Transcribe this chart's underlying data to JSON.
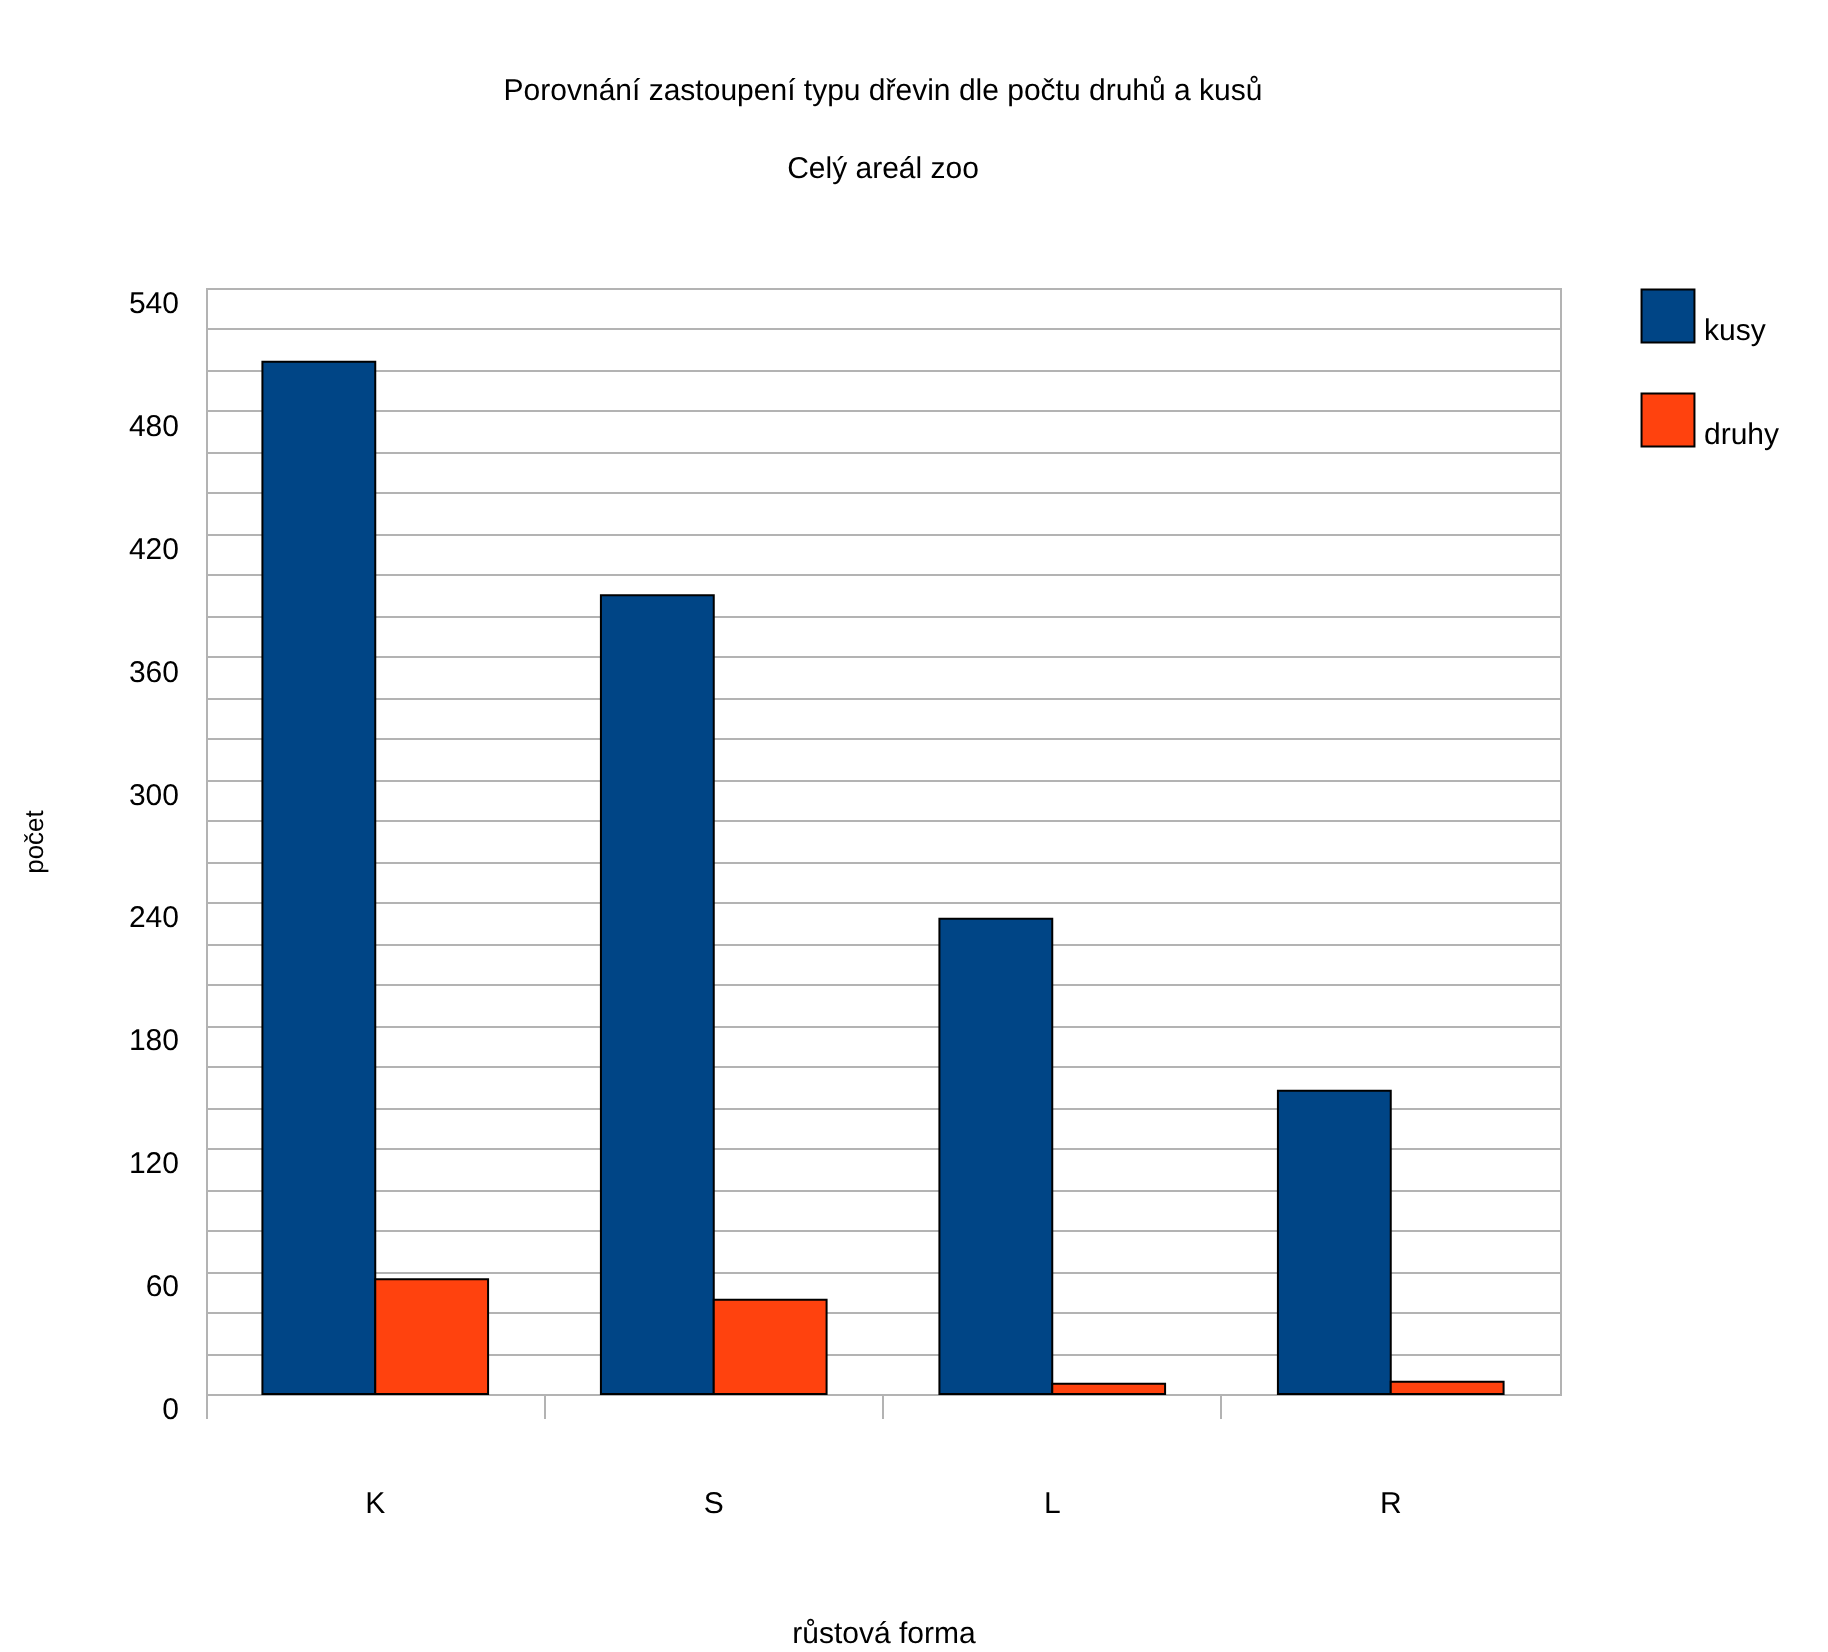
{
  "chart_data": {
    "type": "bar",
    "title": "Porovnání zastoupení typu dřevin dle počtu druhů a kusů",
    "subtitle": "Celý areál zoo",
    "xlabel": "růstová forma",
    "ylabel": "počet",
    "categories": [
      "K",
      "S",
      "L",
      "R"
    ],
    "series": [
      {
        "name": "kusy",
        "color": "#004586",
        "values": [
          504,
          390,
          232,
          148
        ]
      },
      {
        "name": "druhy",
        "color": "#ff420e",
        "values": [
          56,
          46,
          5,
          6
        ]
      }
    ],
    "ylim": [
      0,
      540
    ],
    "yticks": [
      0,
      {
        "value": 20,
        "label": null
      },
      {
        "value": 40,
        "label": null
      },
      60,
      {
        "value": 80,
        "label": null
      },
      {
        "value": 100,
        "label": null
      },
      120,
      {
        "value": 140,
        "label": null
      },
      {
        "value": 160,
        "label": null
      },
      180,
      {
        "value": 200,
        "label": null
      },
      {
        "value": 220,
        "label": null
      },
      240,
      {
        "value": 260,
        "label": null
      },
      {
        "value": 280,
        "label": null
      },
      300,
      {
        "value": 320,
        "label": null
      },
      {
        "value": 340,
        "label": null
      },
      360,
      {
        "value": 380,
        "label": null
      },
      {
        "value": 400,
        "label": null
      },
      420,
      {
        "value": 440,
        "label": null
      },
      {
        "value": 460,
        "label": null
      },
      480,
      {
        "value": 500,
        "label": null
      },
      {
        "value": 520,
        "label": null
      },
      540
    ],
    "grid": true,
    "legend": "right"
  }
}
